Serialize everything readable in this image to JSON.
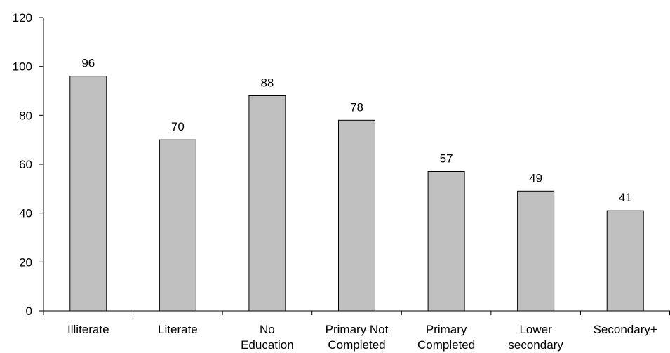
{
  "chart_data": {
    "type": "bar",
    "categories": [
      [
        "Illiterate"
      ],
      [
        "Literate"
      ],
      [
        "No",
        "Education"
      ],
      [
        "Primary Not",
        "Completed"
      ],
      [
        "Primary",
        "Completed"
      ],
      [
        "Lower",
        "secondary"
      ],
      [
        "Secondary+"
      ]
    ],
    "values": [
      96,
      70,
      88,
      78,
      57,
      49,
      41
    ],
    "data_labels": [
      "96",
      "70",
      "88",
      "78",
      "57",
      "49",
      "41"
    ],
    "title": "",
    "xlabel": "",
    "ylabel": "",
    "ylim": [
      0,
      120
    ],
    "yticks": [
      0,
      20,
      40,
      60,
      80,
      100,
      120
    ],
    "grid": false,
    "bar_color": "#c0c0c0",
    "edge_color": "#000000"
  }
}
